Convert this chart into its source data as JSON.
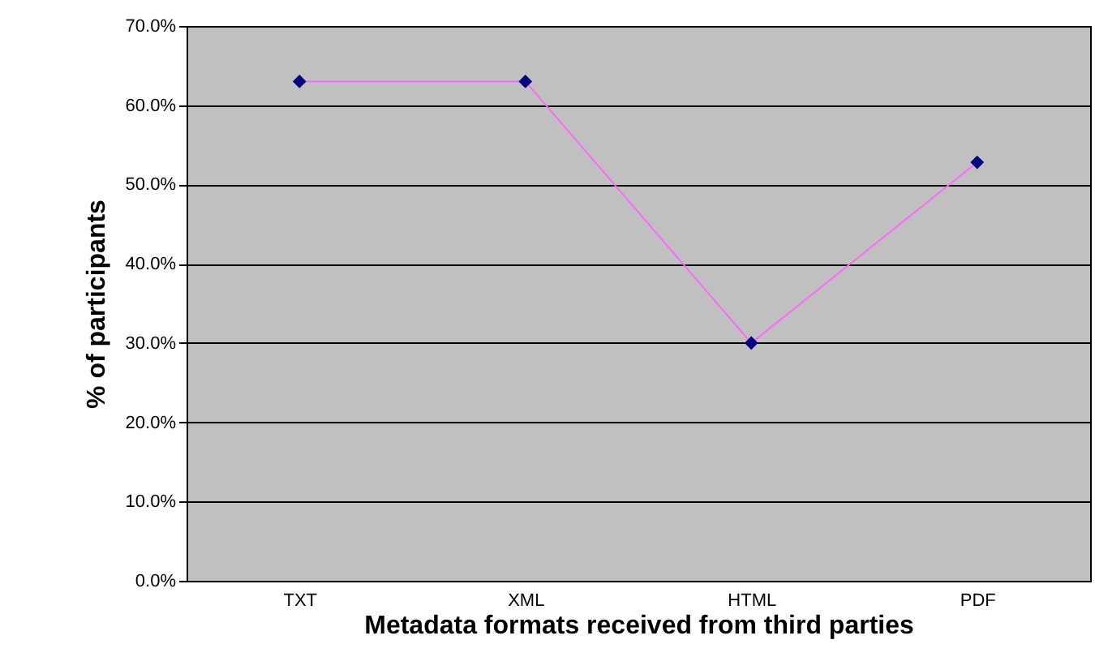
{
  "chart_data": {
    "type": "line",
    "xlabel": "Metadata formats received from third parties",
    "ylabel": "% of participants",
    "categories": [
      "TXT",
      "XML",
      "HTML",
      "PDF"
    ],
    "series": [
      {
        "color": "#ff66ff",
        "values": [
          63.0,
          63.0,
          30.0,
          52.8
        ]
      }
    ],
    "ylim": [
      0,
      70
    ],
    "yticks": [
      {
        "value": 0,
        "label": "0.0%"
      },
      {
        "value": 10,
        "label": "10.0%"
      },
      {
        "value": 20,
        "label": "20.0%"
      },
      {
        "value": 30,
        "label": "30.0%"
      },
      {
        "value": 40,
        "label": "40.0%"
      },
      {
        "value": 50,
        "label": "50.0%"
      },
      {
        "value": 60,
        "label": "60.0%"
      },
      {
        "value": 70,
        "label": "70.0%"
      }
    ],
    "grid": "y",
    "marker": "diamond"
  }
}
